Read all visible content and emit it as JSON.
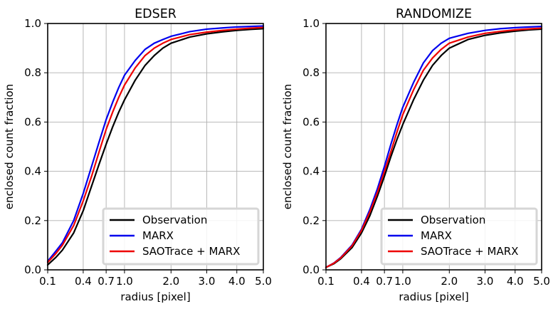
{
  "chart_data": [
    {
      "type": "line",
      "title": "EDSER",
      "xlabel": "radius [pixel]",
      "ylabel": "enclosed count fraction",
      "xscale": "sqrt",
      "xlim": [
        0.1,
        5.0
      ],
      "ylim": [
        0.0,
        1.0
      ],
      "xticks": [
        0.1,
        0.4,
        0.7,
        1.0,
        2.0,
        3.0,
        4.0,
        5.0
      ],
      "xtick_labels": [
        "0.1",
        "0.4",
        "0.7",
        "1.0",
        "2.0",
        "3.0",
        "4.0",
        "5.0"
      ],
      "yticks": [
        0.0,
        0.2,
        0.4,
        0.6,
        0.8,
        1.0
      ],
      "ytick_labels": [
        "0.0",
        "0.2",
        "0.4",
        "0.6",
        "0.8",
        "1.0"
      ],
      "grid": true,
      "legend_position": "lower-right",
      "x": [
        0.1,
        0.15,
        0.2,
        0.3,
        0.4,
        0.5,
        0.6,
        0.7,
        0.8,
        0.9,
        1.0,
        1.2,
        1.4,
        1.6,
        1.8,
        2.0,
        2.5,
        3.0,
        3.5,
        4.0,
        4.5,
        5.0
      ],
      "series": [
        {
          "name": "Observation",
          "color": "#000000",
          "values": [
            0.02,
            0.05,
            0.08,
            0.15,
            0.24,
            0.34,
            0.43,
            0.51,
            0.58,
            0.64,
            0.69,
            0.77,
            0.83,
            0.87,
            0.9,
            0.92,
            0.945,
            0.958,
            0.966,
            0.972,
            0.976,
            0.979
          ]
        },
        {
          "name": "MARX",
          "color": "#0000ee",
          "values": [
            0.035,
            0.075,
            0.11,
            0.2,
            0.31,
            0.42,
            0.52,
            0.61,
            0.68,
            0.74,
            0.79,
            0.85,
            0.895,
            0.92,
            0.935,
            0.948,
            0.967,
            0.977,
            0.982,
            0.986,
            0.988,
            0.99
          ]
        },
        {
          "name": "SAOTrace + MARX",
          "color": "#ee0000",
          "values": [
            0.03,
            0.065,
            0.1,
            0.18,
            0.28,
            0.38,
            0.48,
            0.57,
            0.64,
            0.7,
            0.75,
            0.82,
            0.87,
            0.9,
            0.92,
            0.935,
            0.955,
            0.965,
            0.972,
            0.977,
            0.981,
            0.984
          ]
        }
      ]
    },
    {
      "type": "line",
      "title": "RANDOMIZE",
      "xlabel": "radius [pixel]",
      "ylabel": "enclosed count fraction",
      "xscale": "sqrt",
      "xlim": [
        0.1,
        5.0
      ],
      "ylim": [
        0.0,
        1.0
      ],
      "xticks": [
        0.1,
        0.4,
        0.7,
        1.0,
        2.0,
        3.0,
        4.0,
        5.0
      ],
      "xtick_labels": [
        "0.1",
        "0.4",
        "0.7",
        "1.0",
        "2.0",
        "3.0",
        "4.0",
        "5.0"
      ],
      "yticks": [
        0.0,
        0.2,
        0.4,
        0.6,
        0.8,
        1.0
      ],
      "ytick_labels": [
        "0.0",
        "0.2",
        "0.4",
        "0.6",
        "0.8",
        "1.0"
      ],
      "grid": true,
      "legend_position": "lower-right",
      "x": [
        0.1,
        0.15,
        0.2,
        0.3,
        0.4,
        0.5,
        0.6,
        0.7,
        0.8,
        0.9,
        1.0,
        1.2,
        1.4,
        1.6,
        1.8,
        2.0,
        2.5,
        3.0,
        3.5,
        4.0,
        4.5,
        5.0
      ],
      "series": [
        {
          "name": "Observation",
          "color": "#000000",
          "values": [
            0.01,
            0.025,
            0.045,
            0.09,
            0.15,
            0.22,
            0.3,
            0.38,
            0.46,
            0.53,
            0.59,
            0.69,
            0.77,
            0.83,
            0.87,
            0.9,
            0.935,
            0.952,
            0.962,
            0.969,
            0.974,
            0.977
          ]
        },
        {
          "name": "MARX",
          "color": "#0000ee",
          "values": [
            0.01,
            0.028,
            0.05,
            0.1,
            0.165,
            0.245,
            0.33,
            0.42,
            0.51,
            0.59,
            0.66,
            0.76,
            0.84,
            0.89,
            0.92,
            0.94,
            0.96,
            0.972,
            0.979,
            0.983,
            0.986,
            0.988
          ]
        },
        {
          "name": "SAOTrace + MARX",
          "color": "#ee0000",
          "values": [
            0.01,
            0.027,
            0.048,
            0.097,
            0.16,
            0.235,
            0.315,
            0.4,
            0.48,
            0.56,
            0.63,
            0.73,
            0.81,
            0.86,
            0.895,
            0.92,
            0.945,
            0.96,
            0.968,
            0.974,
            0.978,
            0.981
          ]
        }
      ]
    }
  ]
}
